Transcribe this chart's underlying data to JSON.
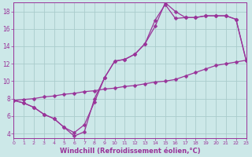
{
  "xlabel": "Windchill (Refroidissement éolien,°C)",
  "bg_color": "#cce8e8",
  "grid_color": "#aacccc",
  "line_color": "#993399",
  "spine_color": "#993399",
  "x_min": 0,
  "x_max": 23,
  "y_min": 3.5,
  "y_max": 19.0,
  "yticks": [
    4,
    6,
    8,
    10,
    12,
    14,
    16,
    18
  ],
  "xticks": [
    0,
    1,
    2,
    3,
    4,
    5,
    6,
    7,
    8,
    9,
    10,
    11,
    12,
    13,
    14,
    15,
    16,
    17,
    18,
    19,
    20,
    21,
    22,
    23
  ],
  "line1_x": [
    0,
    1,
    2,
    3,
    4,
    5,
    6,
    7,
    8,
    9,
    10,
    11,
    12,
    13,
    14,
    15,
    16,
    17,
    18,
    19,
    20,
    21,
    22,
    23
  ],
  "line1_y": [
    7.8,
    7.5,
    7.0,
    6.2,
    5.7,
    4.7,
    4.1,
    5.0,
    7.6,
    10.4,
    12.3,
    12.5,
    13.1,
    14.3,
    17.0,
    18.8,
    17.2,
    17.3,
    17.3,
    17.5,
    17.5,
    17.5,
    17.1,
    12.4
  ],
  "line2_x": [
    0,
    1,
    2,
    3,
    4,
    5,
    6,
    7,
    8,
    9,
    10,
    11,
    12,
    13,
    14,
    15,
    16,
    17,
    18,
    19,
    20,
    21,
    22,
    23
  ],
  "line2_y": [
    7.8,
    7.5,
    7.0,
    6.2,
    5.7,
    4.7,
    3.7,
    4.2,
    8.0,
    10.4,
    12.3,
    12.5,
    13.1,
    14.3,
    16.3,
    19.0,
    18.0,
    17.3,
    17.3,
    17.5,
    17.5,
    17.5,
    17.1,
    12.4
  ],
  "line3_x": [
    0,
    1,
    2,
    3,
    4,
    5,
    6,
    7,
    8,
    9,
    10,
    11,
    12,
    13,
    14,
    15,
    16,
    17,
    18,
    19,
    20,
    21,
    22,
    23
  ],
  "line3_y": [
    7.8,
    7.9,
    8.0,
    8.2,
    8.3,
    8.5,
    8.6,
    8.8,
    8.9,
    9.1,
    9.2,
    9.4,
    9.5,
    9.7,
    9.9,
    10.0,
    10.2,
    10.6,
    11.0,
    11.4,
    11.8,
    12.0,
    12.2,
    12.4
  ],
  "marker_size": 2.5,
  "linewidth": 0.9,
  "xlabel_fontsize": 6.0,
  "tick_fontsize_x": 4.5,
  "tick_fontsize_y": 5.5
}
